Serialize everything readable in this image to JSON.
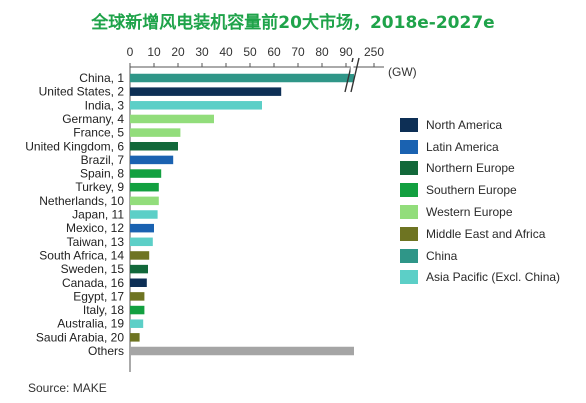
{
  "title": "全球新增风电装机容量前20大市场，2018e-2027e",
  "source": "Source: MAKE",
  "colors": {
    "North America": "#0d2f55",
    "Latin America": "#1a62b1",
    "Northern Europe": "#12683a",
    "Southern Europe": "#12a040",
    "Western Europe": "#92dd7b",
    "Middle East and Africa": "#6e7422",
    "China": "#2f9688",
    "Asia Pacific (Excl. China)": "#5ccfc7",
    "Others": "#a5a5a5"
  },
  "chart_data": {
    "type": "bar",
    "orientation": "horizontal",
    "title": "全球新增风电装机容量前20大市场，2018e-2027e",
    "unit": "(GW)",
    "x_ticks": [
      "0",
      "10",
      "20",
      "30",
      "40",
      "50",
      "60",
      "70",
      "80",
      "90",
      "250"
    ],
    "x_axis_break": true,
    "grid": false,
    "legend_position": "right",
    "legend": [
      "North America",
      "Latin America",
      "Northern Europe",
      "Southern Europe",
      "Western Europe",
      "Middle East and Africa",
      "China",
      "Asia Pacific (Excl. China)"
    ],
    "categories": [
      "China, 1",
      "United States, 2",
      "India, 3",
      "Germany, 4",
      "France, 5",
      "United Kingdom, 6",
      "Brazil, 7",
      "Spain, 8",
      "Turkey, 9",
      "Netherlands, 10",
      "Japan, 11",
      "Mexico, 12",
      "Taiwan, 13",
      "South Africa, 14",
      "Sweden, 15",
      "Canada, 16",
      "Egypt, 17",
      "Italy, 18",
      "Australia, 19",
      "Saudi Arabia, 20",
      "Others"
    ],
    "values": [
      250,
      63,
      55,
      35,
      21,
      20,
      18,
      13,
      12,
      12,
      11.5,
      10,
      9.5,
      8,
      7.5,
      7,
      6,
      6,
      5.5,
      4,
      98
    ],
    "regions": [
      "China",
      "North America",
      "Asia Pacific (Excl. China)",
      "Western Europe",
      "Western Europe",
      "Northern Europe",
      "Latin America",
      "Southern Europe",
      "Southern Europe",
      "Western Europe",
      "Asia Pacific (Excl. China)",
      "Latin America",
      "Asia Pacific (Excl. China)",
      "Middle East and Africa",
      "Northern Europe",
      "North America",
      "Middle East and Africa",
      "Southern Europe",
      "Asia Pacific (Excl. China)",
      "Middle East and Africa",
      "Others"
    ]
  }
}
